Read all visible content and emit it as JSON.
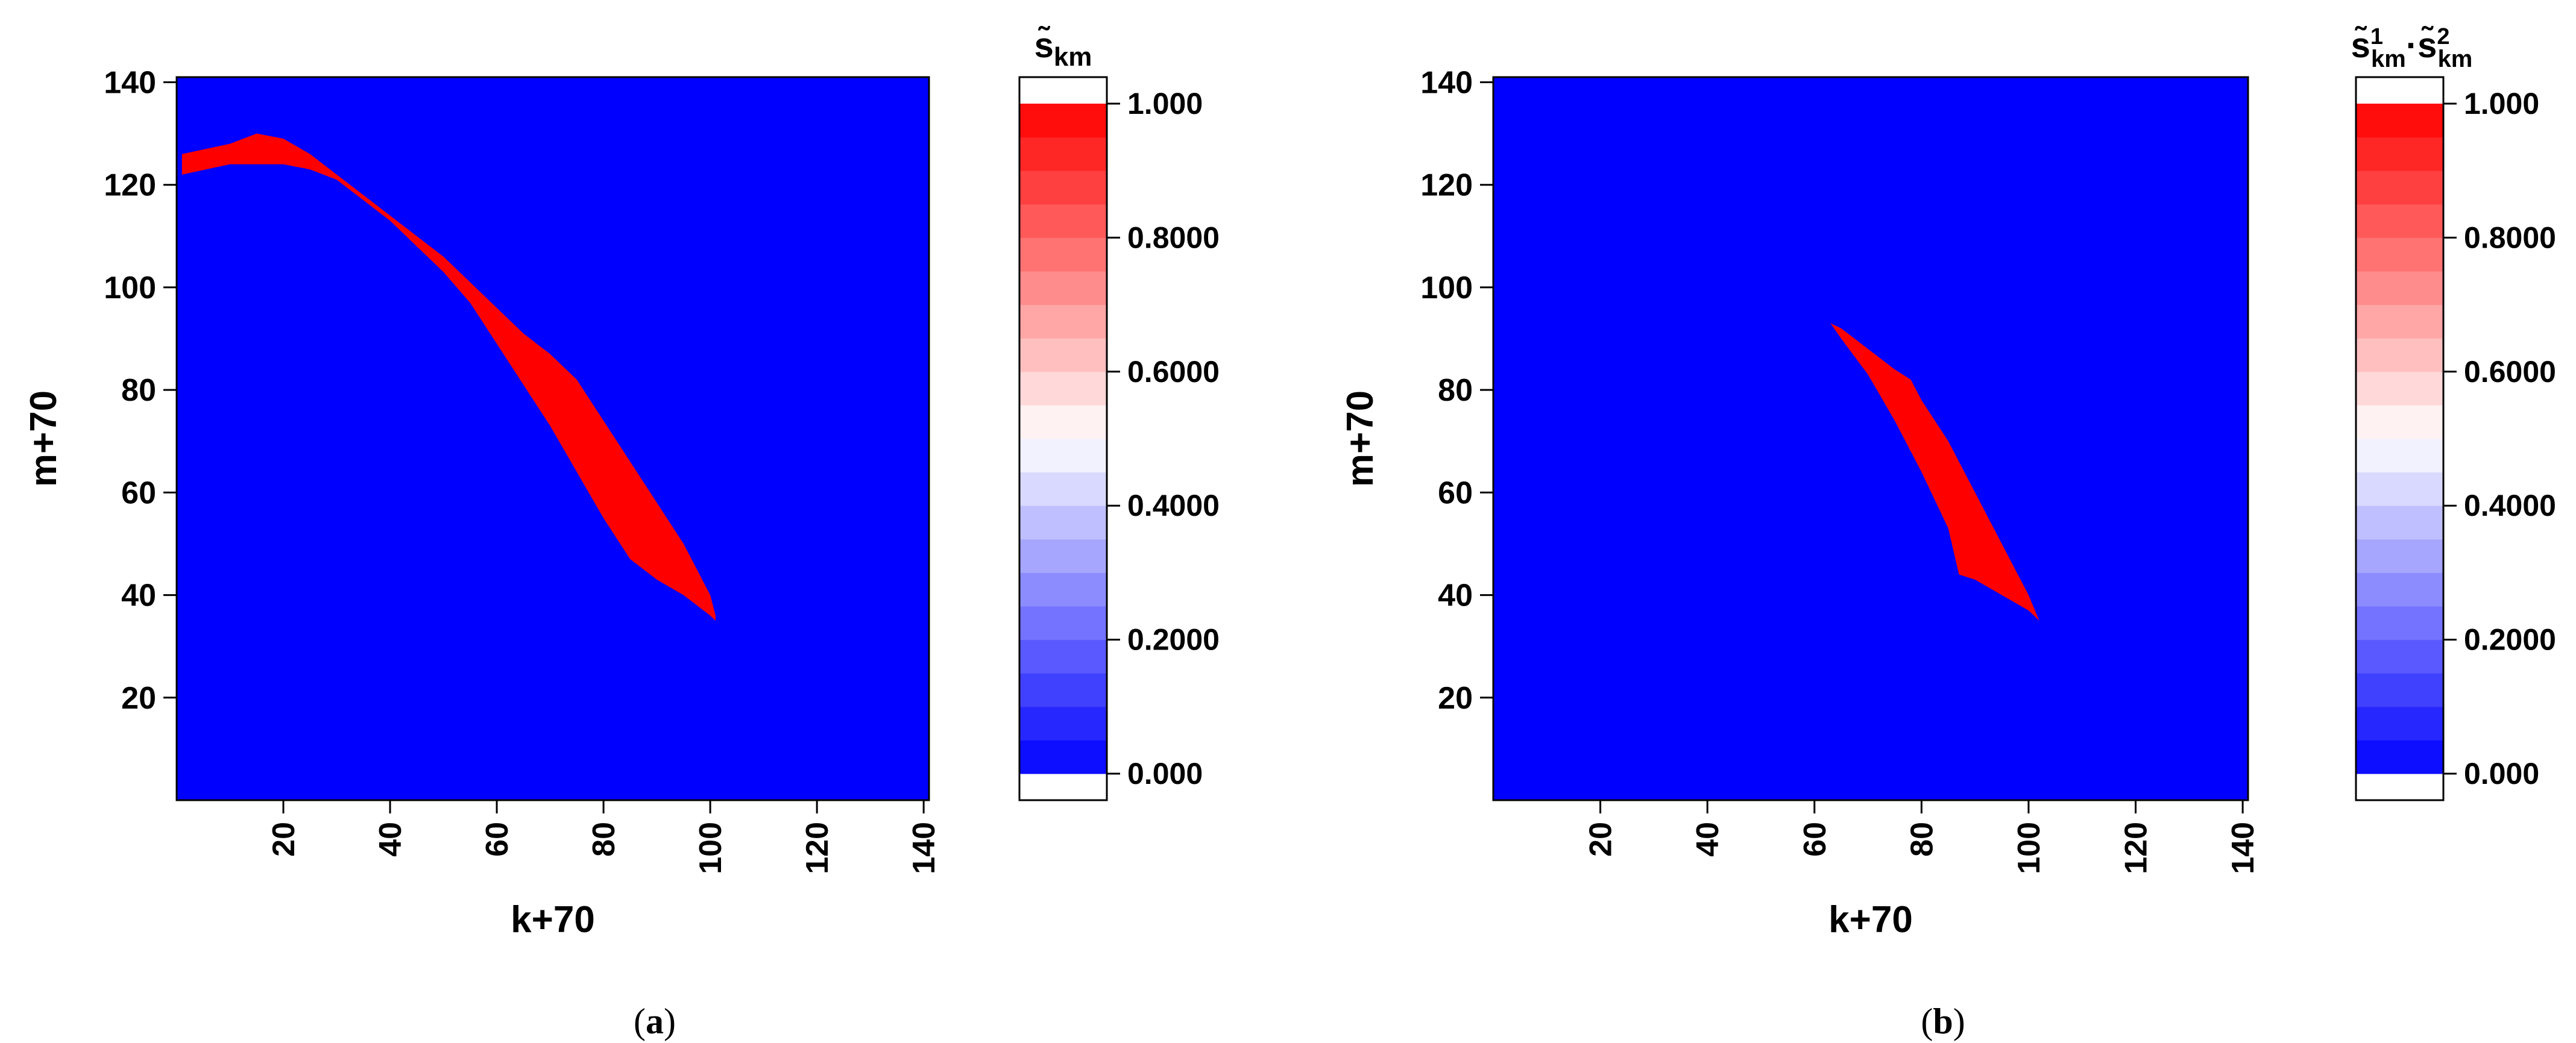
{
  "chart_data": [
    {
      "id": "a",
      "type": "heatmap",
      "caption": "a",
      "xlabel": "k+70",
      "ylabel": "m+70",
      "xlim": [
        0,
        141
      ],
      "ylim": [
        0,
        141
      ],
      "x_ticks": [
        20,
        40,
        60,
        80,
        100,
        120,
        140
      ],
      "y_ticks": [
        20,
        40,
        60,
        80,
        100,
        120,
        140
      ],
      "background_value": 0,
      "cell_value": 1,
      "region": {
        "upper": [
          [
            1,
            126
          ],
          [
            10,
            128
          ],
          [
            15,
            130
          ],
          [
            20,
            129
          ],
          [
            25,
            126
          ],
          [
            30,
            122
          ],
          [
            35,
            118
          ],
          [
            40,
            114
          ],
          [
            45,
            110
          ],
          [
            50,
            106
          ],
          [
            55,
            101
          ],
          [
            60,
            96
          ],
          [
            65,
            91
          ],
          [
            70,
            87
          ],
          [
            75,
            82
          ],
          [
            80,
            74
          ],
          [
            85,
            66
          ],
          [
            90,
            58
          ],
          [
            95,
            50
          ],
          [
            100,
            40
          ],
          [
            101,
            36
          ]
        ],
        "lower": [
          [
            1,
            122
          ],
          [
            10,
            124
          ],
          [
            20,
            124
          ],
          [
            25,
            123
          ],
          [
            30,
            121
          ],
          [
            35,
            117
          ],
          [
            40,
            113
          ],
          [
            45,
            108
          ],
          [
            50,
            103
          ],
          [
            55,
            97
          ],
          [
            60,
            89
          ],
          [
            65,
            81
          ],
          [
            70,
            73
          ],
          [
            75,
            64
          ],
          [
            80,
            55
          ],
          [
            85,
            47
          ],
          [
            90,
            43
          ],
          [
            95,
            40
          ],
          [
            100,
            36
          ],
          [
            101,
            35
          ]
        ]
      },
      "colorbar": {
        "title_main": "s̃",
        "title_sub": "km",
        "range": [
          0,
          1
        ],
        "tick_values": [
          0,
          0.2,
          0.4,
          0.6,
          0.8,
          1.0
        ],
        "tick_labels": [
          "0.000",
          "0.2000",
          "0.4000",
          "0.6000",
          "0.8000",
          "1.000"
        ],
        "colors": {
          "low": "#0000ff",
          "mid": "#ffffff",
          "high": "#ff0000"
        }
      }
    },
    {
      "id": "b",
      "type": "heatmap",
      "caption": "b",
      "xlabel": "k+70",
      "ylabel": "m+70",
      "xlim": [
        0,
        141
      ],
      "ylim": [
        0,
        141
      ],
      "x_ticks": [
        20,
        40,
        60,
        80,
        100,
        120,
        140
      ],
      "y_ticks": [
        20,
        40,
        60,
        80,
        100,
        120,
        140
      ],
      "background_value": 0,
      "cell_value": 1,
      "region": {
        "upper": [
          [
            63,
            93
          ],
          [
            65,
            92
          ],
          [
            70,
            88
          ],
          [
            75,
            84
          ],
          [
            78,
            82
          ],
          [
            80,
            78
          ],
          [
            85,
            70
          ],
          [
            90,
            60
          ],
          [
            95,
            50
          ],
          [
            100,
            40
          ],
          [
            102,
            35
          ]
        ],
        "lower": [
          [
            63,
            93
          ],
          [
            65,
            90
          ],
          [
            70,
            83
          ],
          [
            75,
            74
          ],
          [
            80,
            64
          ],
          [
            85,
            53
          ],
          [
            87,
            44
          ],
          [
            90,
            43
          ],
          [
            95,
            40
          ],
          [
            100,
            37
          ],
          [
            102,
            35
          ]
        ]
      },
      "colorbar": {
        "title_part1": "s̃",
        "title_part1_sup": "1",
        "title_part1_sub": "km",
        "title_dot": "·",
        "title_part2": "s̃",
        "title_part2_sup": "2",
        "title_part2_sub": "km",
        "range": [
          0,
          1
        ],
        "tick_values": [
          0,
          0.2,
          0.4,
          0.6,
          0.8,
          1.0
        ],
        "tick_labels": [
          "0.000",
          "0.2000",
          "0.4000",
          "0.6000",
          "0.8000",
          "1.000"
        ],
        "colors": {
          "low": "#0000ff",
          "mid": "#ffffff",
          "high": "#ff0000"
        }
      }
    }
  ]
}
